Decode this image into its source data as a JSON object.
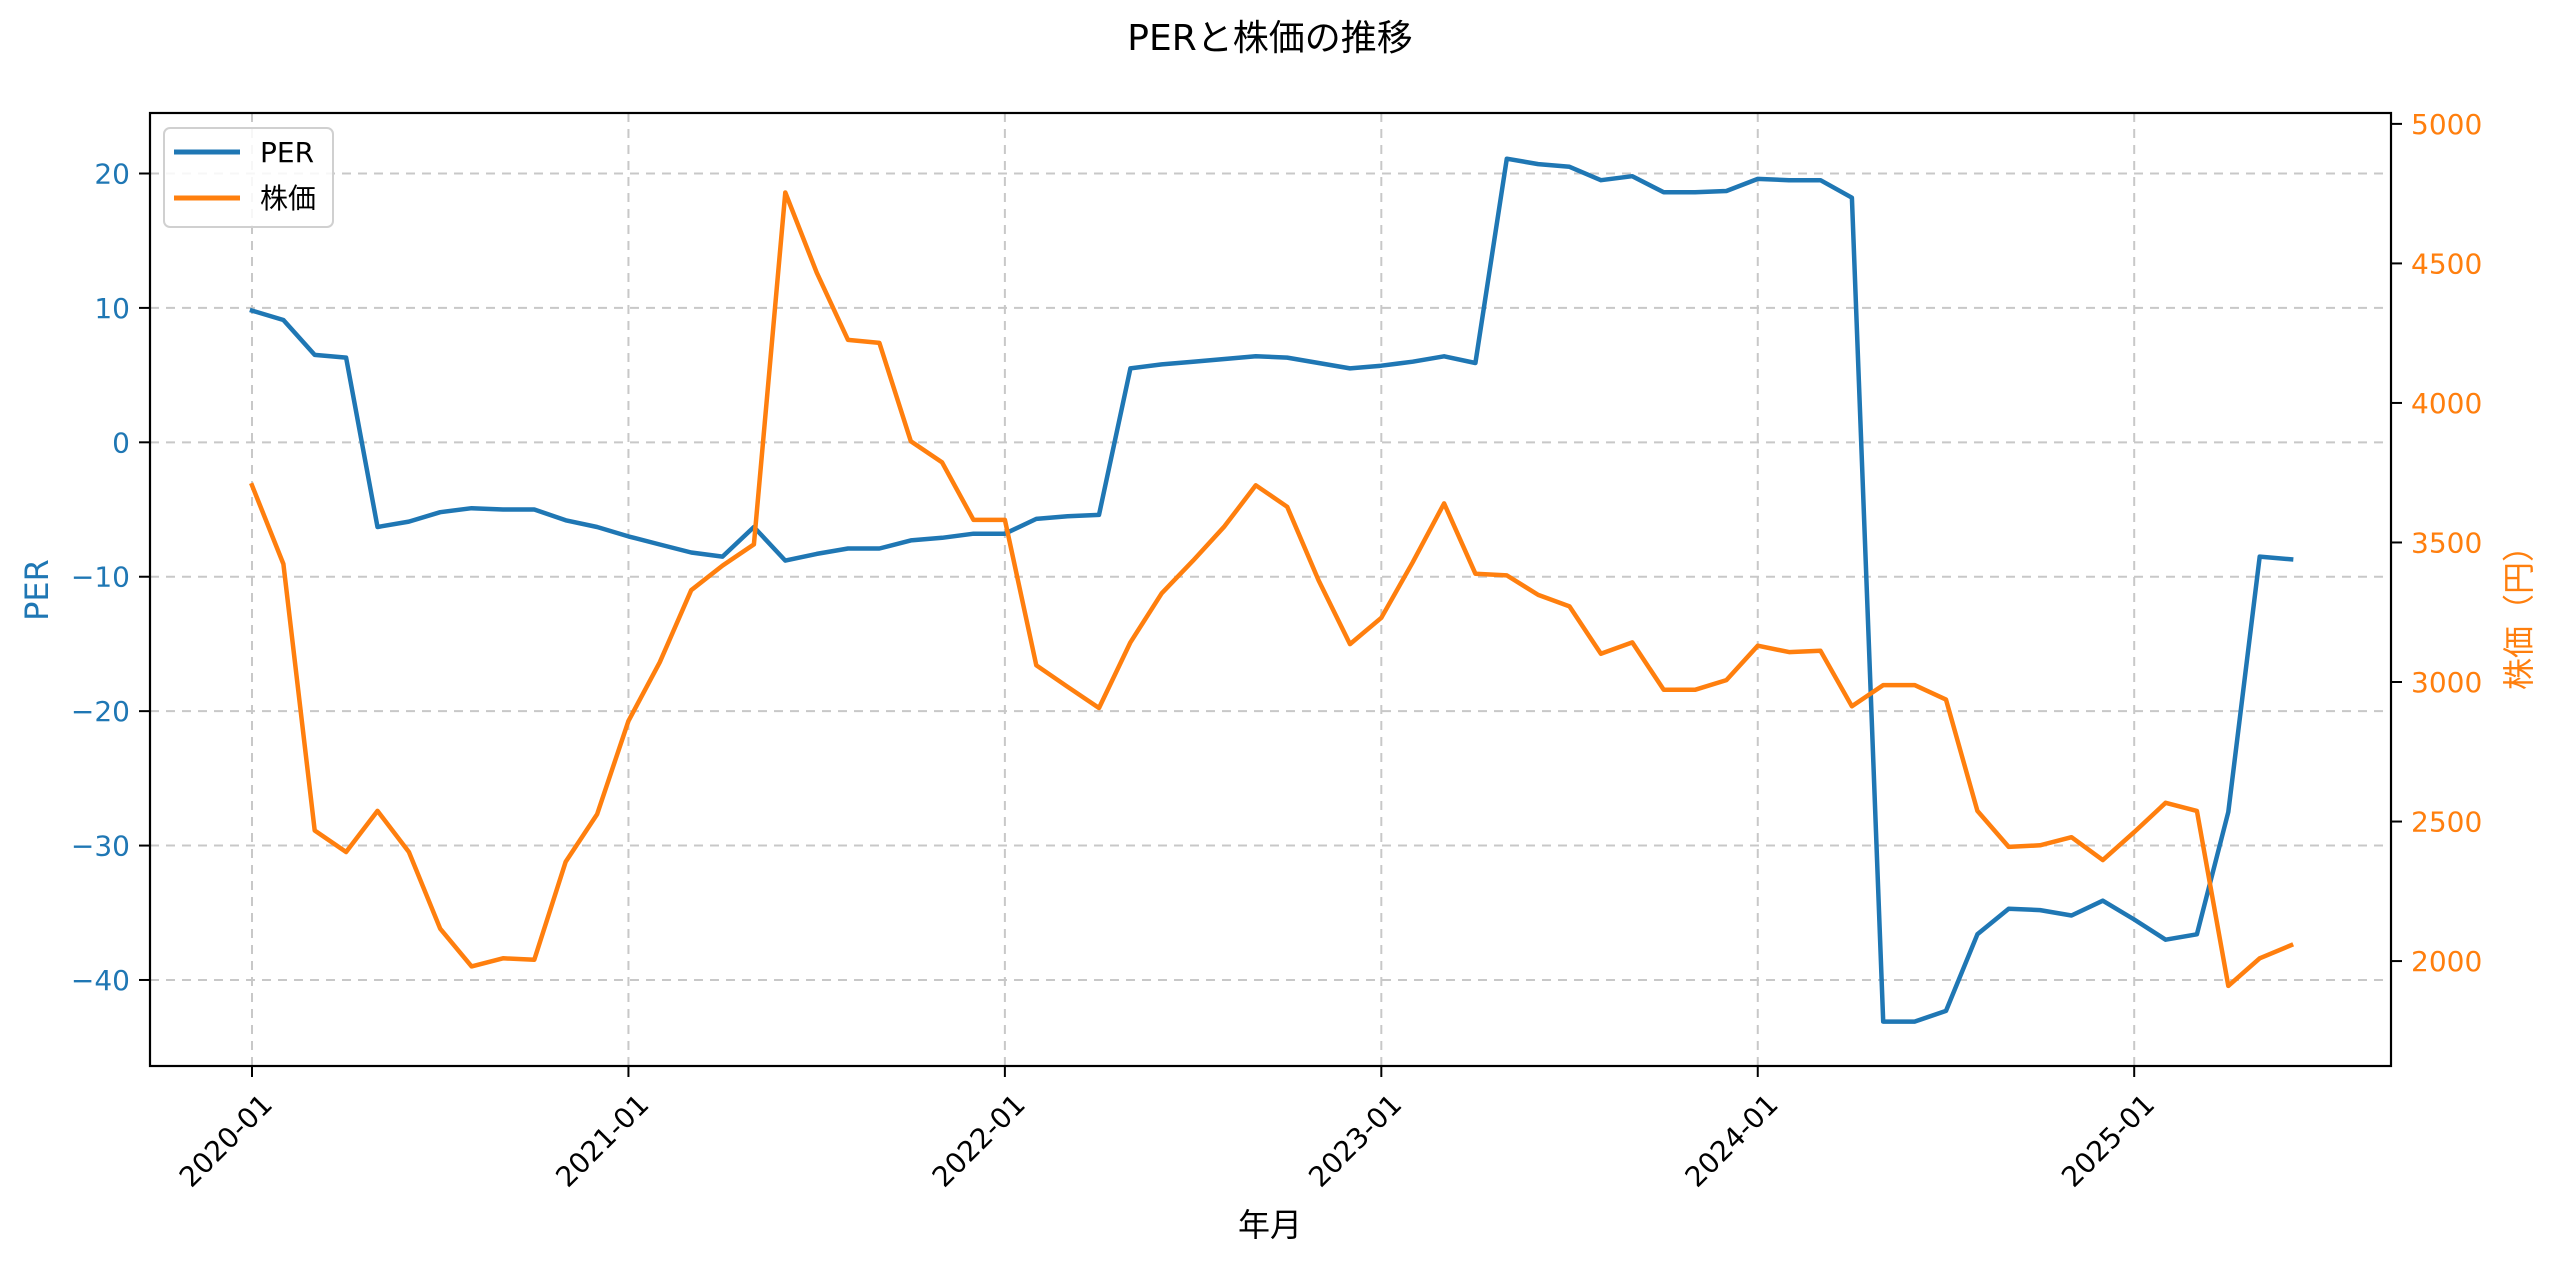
{
  "chart_data": {
    "type": "line",
    "title": "PERと株価の推移",
    "xlabel": "年月",
    "ylabel": "PER",
    "ylabel_right": "株価（円）",
    "x_ticks": [
      "2020-01",
      "2021-01",
      "2022-01",
      "2023-01",
      "2024-01",
      "2025-01"
    ],
    "y_ticks_left": [
      20,
      10,
      0,
      -10,
      -20,
      -30,
      -40
    ],
    "y_tick_labels_left": [
      "20",
      "10",
      "0",
      "−10",
      "−20",
      "−30",
      "−40"
    ],
    "y_ticks_right": [
      5000,
      4500,
      4000,
      3500,
      3000,
      2500,
      2000
    ],
    "ylim_left": [
      -46.4,
      24.5
    ],
    "ylim_right": [
      1624,
      5039
    ],
    "grid": true,
    "legend_position": "upper left",
    "x": [
      "2020-01",
      "2020-02",
      "2020-03",
      "2020-04",
      "2020-05",
      "2020-06",
      "2020-07",
      "2020-08",
      "2020-09",
      "2020-10",
      "2020-11",
      "2020-12",
      "2021-01",
      "2021-02",
      "2021-03",
      "2021-04",
      "2021-05",
      "2021-06",
      "2021-07",
      "2021-08",
      "2021-09",
      "2021-10",
      "2021-11",
      "2021-12",
      "2022-01",
      "2022-02",
      "2022-03",
      "2022-04",
      "2022-05",
      "2022-06",
      "2022-07",
      "2022-08",
      "2022-09",
      "2022-10",
      "2022-11",
      "2022-12",
      "2023-01",
      "2023-02",
      "2023-03",
      "2023-04",
      "2023-05",
      "2023-06",
      "2023-07",
      "2023-08",
      "2023-09",
      "2023-10",
      "2023-11",
      "2023-12",
      "2024-01",
      "2024-02",
      "2024-03",
      "2024-04",
      "2024-05",
      "2024-06",
      "2024-07",
      "2024-08",
      "2024-09",
      "2024-10",
      "2024-11",
      "2024-12",
      "2025-01",
      "2025-02",
      "2025-03",
      "2025-04",
      "2025-05",
      "2025-06"
    ],
    "series": [
      {
        "name": "PER",
        "axis": "left",
        "color": "#1f77b4",
        "values": [
          9.8,
          9.1,
          6.5,
          6.3,
          -6.3,
          -5.9,
          -5.2,
          -4.9,
          -5.0,
          -5.0,
          -5.8,
          -6.3,
          -7.0,
          -7.6,
          -8.2,
          -8.5,
          -6.3,
          -8.8,
          -8.3,
          -7.9,
          -7.9,
          -7.3,
          -7.1,
          -6.8,
          -6.8,
          -5.7,
          -5.5,
          -5.4,
          5.5,
          5.8,
          6.0,
          6.2,
          6.4,
          6.3,
          5.9,
          5.5,
          5.7,
          6.0,
          6.4,
          5.9,
          21.1,
          20.7,
          20.5,
          19.5,
          19.8,
          18.6,
          18.6,
          18.7,
          19.6,
          19.5,
          19.5,
          18.2,
          -43.1,
          -43.1,
          -42.3,
          -36.6,
          -34.7,
          -34.8,
          -35.2,
          -34.1,
          -35.5,
          -37.0,
          -36.6,
          -27.5,
          -8.5,
          -8.7
        ]
      },
      {
        "name": "株価",
        "axis": "right",
        "color": "#ff7f0e",
        "values": [
          3705,
          3423,
          2468,
          2391,
          2538,
          2391,
          2116,
          1981,
          2010,
          2005,
          2356,
          2526,
          2860,
          3071,
          3329,
          3417,
          3493,
          4754,
          4467,
          4226,
          4215,
          3863,
          3787,
          3581,
          3581,
          3060,
          2983,
          2907,
          3142,
          3318,
          3435,
          3558,
          3705,
          3628,
          3364,
          3136,
          3230,
          3429,
          3640,
          3388,
          3382,
          3312,
          3271,
          3101,
          3142,
          2972,
          2972,
          3007,
          3130,
          3107,
          3112,
          2913,
          2989,
          2989,
          2937,
          2538,
          2409,
          2415,
          2444,
          2362,
          2462,
          2567,
          2538,
          1911,
          2010,
          2057
        ]
      }
    ]
  },
  "legend": {
    "items": [
      {
        "label": "PER",
        "color": "#1f77b4"
      },
      {
        "label": "株価",
        "color": "#ff7f0e"
      }
    ]
  },
  "colors": {
    "per": "#1f77b4",
    "price": "#ff7f0e",
    "grid": "#c8c8c8",
    "axis": "#000000"
  }
}
